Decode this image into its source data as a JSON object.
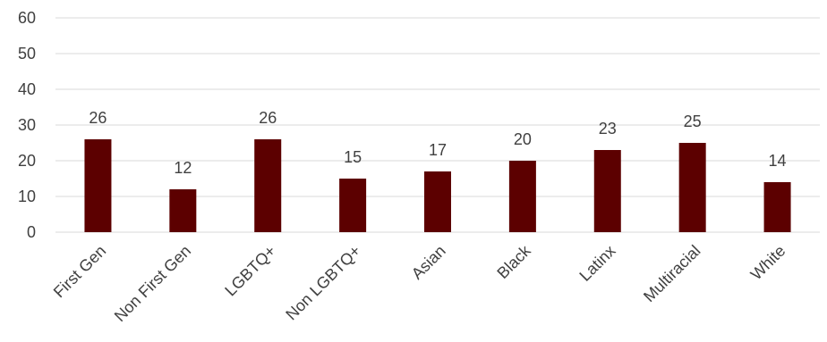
{
  "chart_data": {
    "type": "bar",
    "categories": [
      "First Gen",
      "Non First Gen",
      "LGBTQ+",
      "Non LGBTQ+",
      "Asian",
      "Black",
      "Latinx",
      "Multiracial",
      "White"
    ],
    "values": [
      26,
      12,
      26,
      15,
      17,
      20,
      23,
      25,
      14
    ],
    "title": "",
    "xlabel": "",
    "ylabel": "",
    "ylim": [
      0,
      60
    ],
    "yticks": [
      0,
      10,
      20,
      30,
      40,
      50,
      60
    ],
    "grid": true,
    "data_labels": true,
    "bar_color": "#5c0000"
  }
}
